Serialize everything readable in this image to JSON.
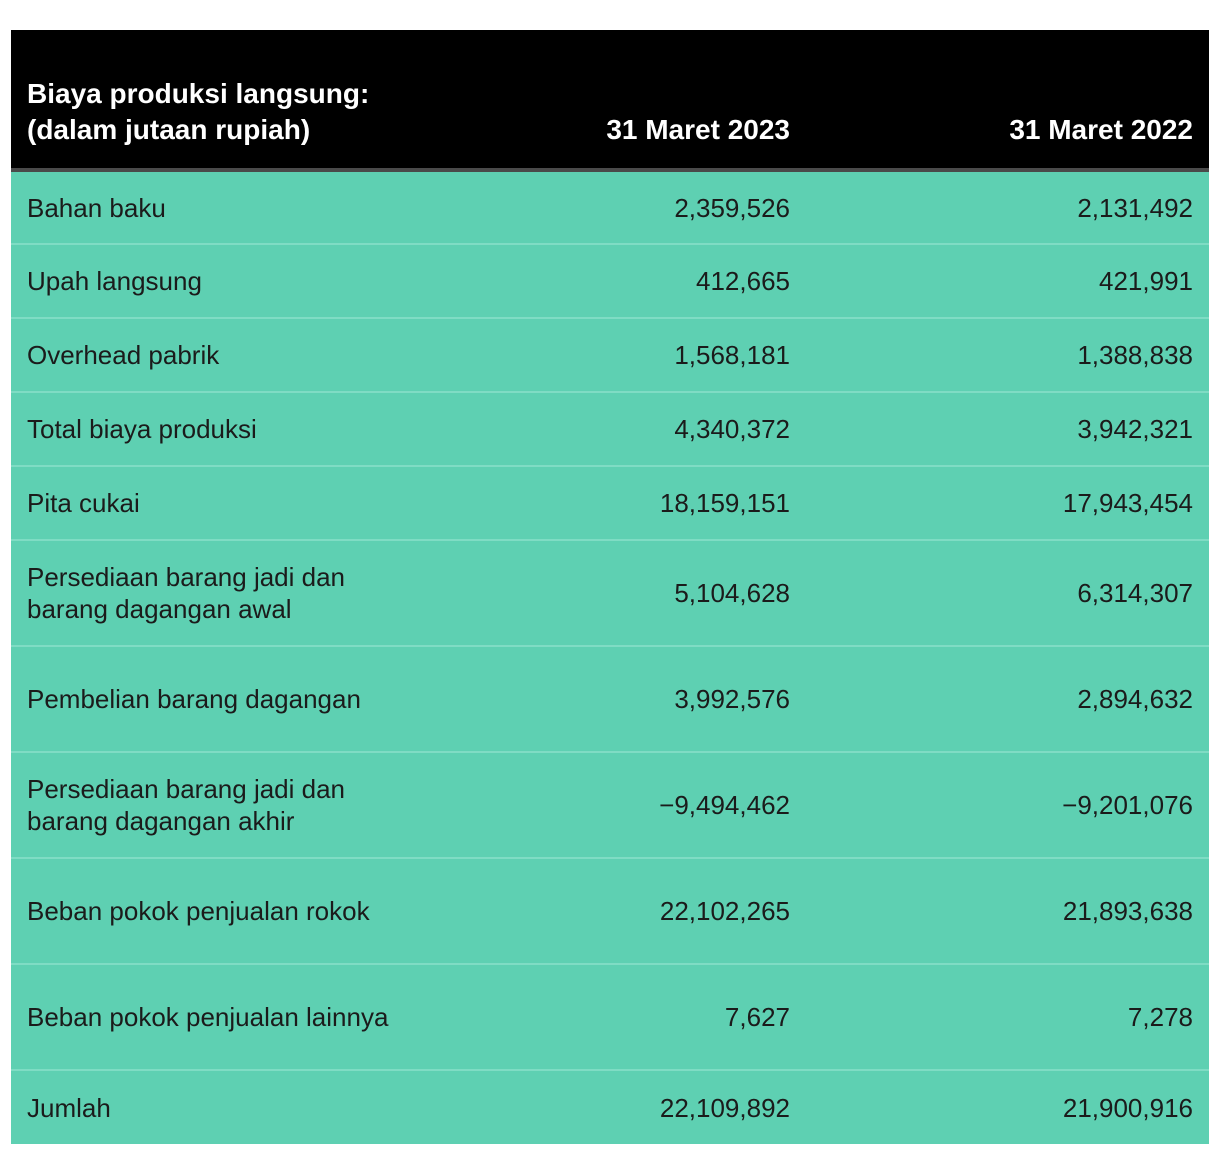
{
  "chart_data": {
    "type": "table",
    "columns": [
      "Biaya produksi langsung: (dalam jutaan rupiah)",
      "31 Maret 2023",
      "31 Maret 2022"
    ],
    "rows": [
      {
        "label": "Bahan baku",
        "v2023": "2,359,526",
        "v2022": "2,131,492"
      },
      {
        "label": "Upah langsung",
        "v2023": "412,665",
        "v2022": "421,991"
      },
      {
        "label": "Overhead pabrik",
        "v2023": "1,568,181",
        "v2022": "1,388,838"
      },
      {
        "label": "Total biaya produksi",
        "v2023": "4,340,372",
        "v2022": "3,942,321"
      },
      {
        "label": "Pita cukai",
        "v2023": "18,159,151",
        "v2022": "17,943,454"
      },
      {
        "label": "Persediaan barang jadi dan barang dagangan awal",
        "v2023": "5,104,628",
        "v2022": "6,314,307"
      },
      {
        "label": "Pembelian barang dagangan",
        "v2023": "3,992,576",
        "v2022": "2,894,632"
      },
      {
        "label": "Persediaan barang jadi dan barang dagangan akhir",
        "v2023": "−9,494,462",
        "v2022": "−9,201,076"
      },
      {
        "label": "Beban pokok penjualan rokok",
        "v2023": "22,102,265",
        "v2022": "21,893,638"
      },
      {
        "label": "Beban pokok penjualan lainnya",
        "v2023": "7,627",
        "v2022": "7,278"
      },
      {
        "label": "Jumlah",
        "v2023": "22,109,892",
        "v2022": "21,900,916"
      }
    ]
  }
}
